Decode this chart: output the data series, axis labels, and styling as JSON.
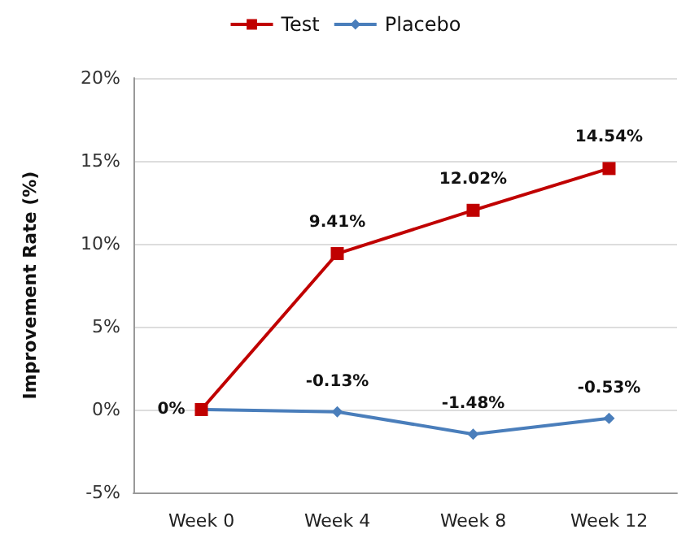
{
  "chart_data": {
    "type": "line",
    "ylabel": "Improvement Rate (%)",
    "categories": [
      "Week 0",
      "Week 4",
      "Week 8",
      "Week 12"
    ],
    "series": [
      {
        "name": "Test",
        "color": "#c00000",
        "marker": "square",
        "values": [
          0,
          9.41,
          12.02,
          14.54
        ],
        "value_labels": [
          "0%",
          "9.41%",
          "12.02%",
          "14.54%"
        ]
      },
      {
        "name": "Placebo",
        "color": "#4a7ebb",
        "marker": "diamond",
        "values": [
          0,
          -0.13,
          -1.48,
          -0.53
        ],
        "value_labels": [
          null,
          "-0.13%",
          "-1.48%",
          "-0.53%"
        ]
      }
    ],
    "ylim": [
      -5,
      20
    ],
    "yticks": [
      {
        "value": -5,
        "label": "-5%"
      },
      {
        "value": 0,
        "label": "0%"
      },
      {
        "value": 5,
        "label": "5%"
      },
      {
        "value": 10,
        "label": "10%"
      },
      {
        "value": 15,
        "label": "15%"
      },
      {
        "value": 20,
        "label": "20%"
      }
    ],
    "grid": "y",
    "legend": "top",
    "line_style": "solid"
  }
}
